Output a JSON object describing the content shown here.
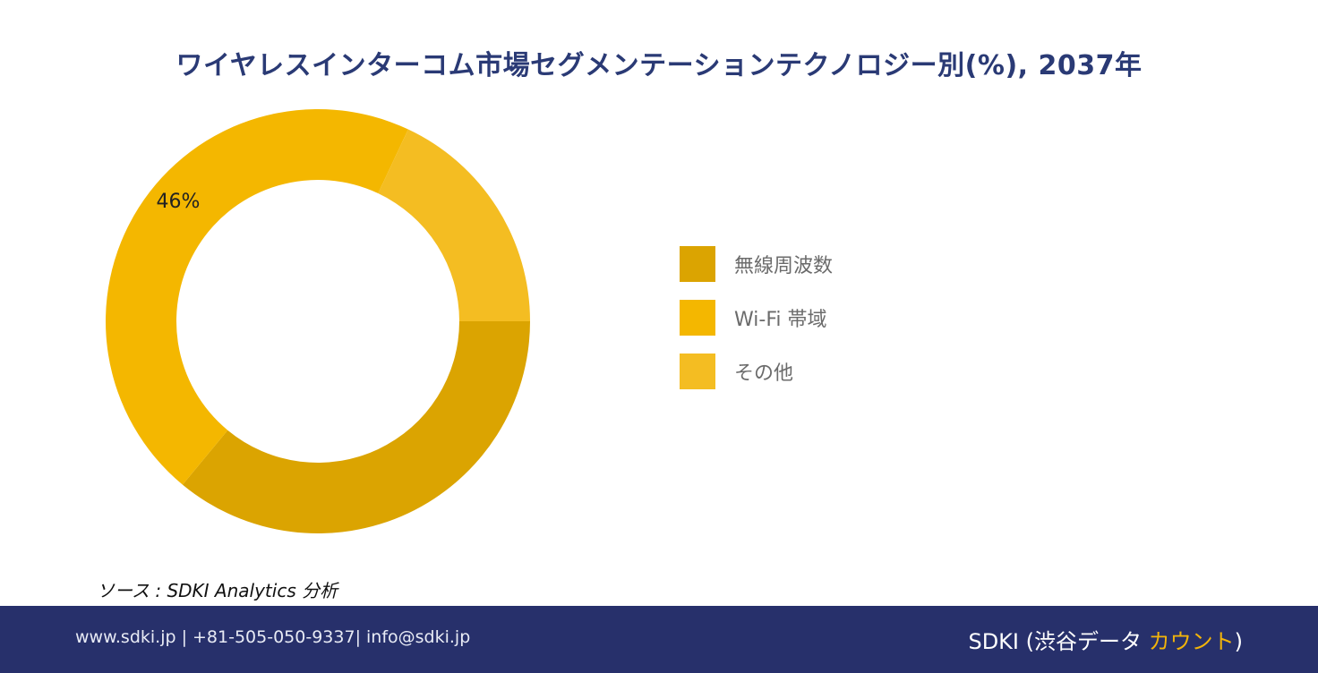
{
  "chart_data": {
    "type": "pie",
    "title": "ワイヤレスインターコム市場セグメンテーションテクノロジー別(%), 2037年",
    "categories": [
      "無線周波数",
      "Wi-Fi 帯域",
      "その他"
    ],
    "values": [
      36,
      46,
      18
    ],
    "data_labels": [
      "",
      "46%",
      ""
    ],
    "donut": true,
    "legend_position": "right"
  },
  "colors": {
    "series": [
      "#dba401",
      "#f4b700",
      "#f4bd22"
    ],
    "title": "#2a3a75",
    "footer_bg": "#27306b",
    "brand_accent": "#f2b40a"
  },
  "source": "ソース : SDKI Analytics 分析",
  "footer": {
    "contact": "www.sdki.jp | +81-505-050-9337| info@sdki.jp",
    "brand_main": "SDKI (渋谷データ ",
    "brand_accent": "カウント",
    "brand_close": ")"
  }
}
